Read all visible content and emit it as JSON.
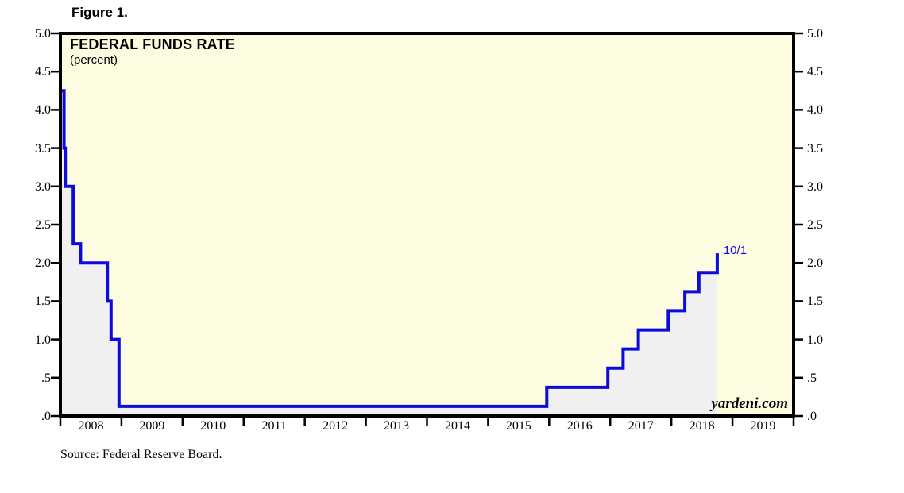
{
  "figure_label": "Figure 1.",
  "chart": {
    "title": "FEDERAL FUNDS RATE",
    "subtitle": "(percent)",
    "watermark": "yardeni.com",
    "annotation_label": "10/1",
    "source": "Source: Federal Reserve Board.",
    "colors": {
      "plot_background": "#fdfce1",
      "area_fill": "#f0f0f1",
      "line": "#0c0cda",
      "border": "#000000",
      "tick": "#000000",
      "annotation_text": "#0c0cda"
    }
  },
  "chart_data": {
    "type": "line",
    "style": "step-after",
    "title": "FEDERAL FUNDS RATE",
    "xlabel": "",
    "ylabel": "percent",
    "xlim": [
      2008,
      2020
    ],
    "ylim": [
      0.0,
      5.0
    ],
    "grid": false,
    "legend": "none",
    "ytick_labels": [
      "5.0",
      "4.5",
      "4.0",
      "3.5",
      "3.0",
      "2.5",
      "2.0",
      "1.5",
      "1.0",
      ".5",
      ".0"
    ],
    "ytick_values": [
      5.0,
      4.5,
      4.0,
      3.5,
      3.0,
      2.5,
      2.0,
      1.5,
      1.0,
      0.5,
      0.0
    ],
    "xtick_year_labels": [
      "2008",
      "2009",
      "2010",
      "2011",
      "2012",
      "2013",
      "2014",
      "2015",
      "2016",
      "2017",
      "2018",
      "2019"
    ],
    "series": [
      {
        "name": "Federal funds rate (percent)",
        "x_unit": "decimal_year",
        "points": [
          [
            2008.0,
            4.25
          ],
          [
            2008.06,
            3.5
          ],
          [
            2008.08,
            3.0
          ],
          [
            2008.21,
            2.25
          ],
          [
            2008.33,
            2.0
          ],
          [
            2008.77,
            1.5
          ],
          [
            2008.83,
            1.0
          ],
          [
            2008.96,
            0.125
          ],
          [
            2015.96,
            0.375
          ],
          [
            2016.96,
            0.625
          ],
          [
            2017.21,
            0.875
          ],
          [
            2017.46,
            1.125
          ],
          [
            2017.95,
            1.375
          ],
          [
            2018.22,
            1.625
          ],
          [
            2018.45,
            1.875
          ],
          [
            2018.75,
            2.125
          ]
        ]
      }
    ],
    "annotation": {
      "text": "10/1",
      "x": 2018.75,
      "y": 2.125
    }
  }
}
